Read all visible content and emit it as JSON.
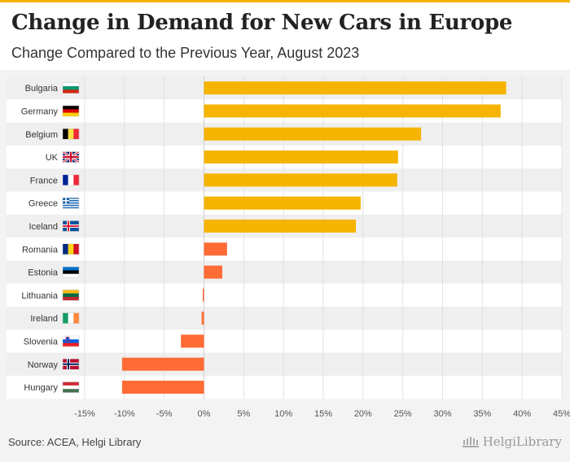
{
  "header": {
    "title": "Change in Demand for New Cars in Europe",
    "subtitle": "Change Compared to the Previous Year, August 2023"
  },
  "footer": {
    "source": "Source: ACEA, Helgi Library",
    "brand": "HelgiLibrary"
  },
  "colors": {
    "positive_large": "#f5b400",
    "positive_small_and_negative": "#ff6b35",
    "accent": "#f5b400"
  },
  "chart_data": {
    "type": "bar",
    "orientation": "horizontal",
    "categories": [
      "Bulgaria",
      "Germany",
      "Belgium",
      "UK",
      "France",
      "Greece",
      "Iceland",
      "Romania",
      "Estonia",
      "Lithuania",
      "Ireland",
      "Slovenia",
      "Norway",
      "Hungary"
    ],
    "values": [
      38.0,
      37.3,
      27.3,
      24.4,
      24.3,
      19.7,
      19.1,
      2.9,
      2.3,
      -0.1,
      -0.3,
      -2.9,
      -10.3,
      -10.3
    ],
    "bar_colors": [
      "#f5b400",
      "#f5b400",
      "#f5b400",
      "#f5b400",
      "#f5b400",
      "#f5b400",
      "#f5b400",
      "#ff6b35",
      "#ff6b35",
      "#ff6b35",
      "#ff6b35",
      "#ff6b35",
      "#ff6b35",
      "#ff6b35"
    ],
    "flags": [
      "bulgaria-flag-icon",
      "germany-flag-icon",
      "belgium-flag-icon",
      "uk-flag-icon",
      "france-flag-icon",
      "greece-flag-icon",
      "iceland-flag-icon",
      "romania-flag-icon",
      "estonia-flag-icon",
      "lithuania-flag-icon",
      "ireland-flag-icon",
      "slovenia-flag-icon",
      "norway-flag-icon",
      "hungary-flag-icon"
    ],
    "xlim": [
      -15,
      45
    ],
    "xticks": [
      -15,
      -10,
      -5,
      0,
      5,
      10,
      15,
      20,
      25,
      30,
      35,
      40,
      45
    ],
    "xtick_labels": [
      "-15%",
      "-10%",
      "-5%",
      "0%",
      "5%",
      "10%",
      "15%",
      "20%",
      "25%",
      "30%",
      "35%",
      "40%",
      "45%"
    ],
    "grid": "vertical",
    "row_banding": true
  }
}
